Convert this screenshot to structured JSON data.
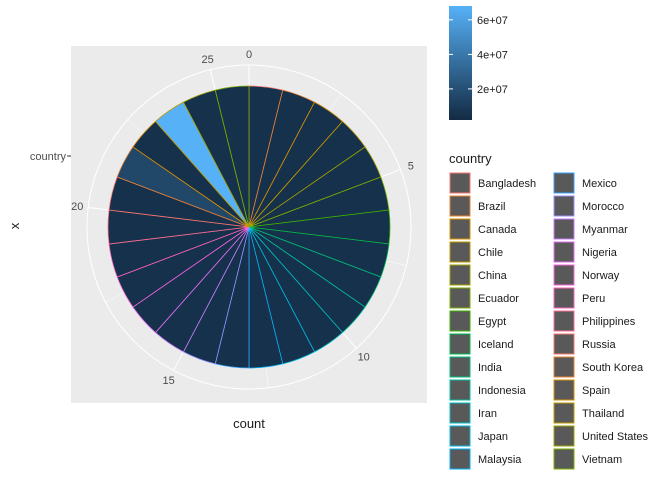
{
  "chart_data": {
    "type": "pie",
    "coord": "polar",
    "x_axis_title": "count",
    "y_axis_title": "x",
    "y_tick_label": "country",
    "theta_ticks": [
      "0",
      "5",
      "10",
      "15",
      "20",
      "25"
    ],
    "theta_tick_values": [
      0,
      5,
      10,
      15,
      20,
      25
    ],
    "total": 26,
    "categories": [
      "Bangladesh",
      "Brazil",
      "Canada",
      "Chile",
      "China",
      "Ecuador",
      "Egypt",
      "Iceland",
      "India",
      "Indonesia",
      "Iran",
      "Japan",
      "Malaysia",
      "Mexico",
      "Morocco",
      "Myanmar",
      "Nigeria",
      "Norway",
      "Peru",
      "Philippines",
      "Russia",
      "South Korea",
      "Spain",
      "Thailand",
      "United States",
      "Vietnam"
    ],
    "values": [
      1,
      1,
      1,
      1,
      1,
      1,
      1,
      1,
      1,
      1,
      1,
      1,
      1,
      1,
      1,
      1,
      1,
      1,
      1,
      1,
      1,
      1,
      1,
      1,
      1,
      1
    ],
    "fill_values": [
      5000000,
      5000000,
      5000000,
      5000000,
      5000000,
      5000000,
      5000000,
      5000000,
      5000000,
      5000000,
      5000000,
      5000000,
      5000000,
      5000000,
      5000000,
      5000000,
      5000000,
      5000000,
      5000000,
      5000000,
      5000000,
      16000000,
      5000000,
      68000000,
      5000000,
      5000000
    ],
    "outline_colors": [
      "#F8766D",
      "#EA8331",
      "#D89000",
      "#C09B00",
      "#A3A500",
      "#7CAE00",
      "#39B600",
      "#00BB4E",
      "#00BF7D",
      "#00C1A3",
      "#00BFC4",
      "#00BAE0",
      "#00B0F6",
      "#35A2FF",
      "#9590FF",
      "#C77CFF",
      "#E76BF3",
      "#FA62DB",
      "#FF62BC",
      "#FF6C91",
      "#F8766D",
      "#EA8331",
      "#D89000",
      "#C09B00",
      "#A3A500",
      "#7CAE00"
    ],
    "colorbar": {
      "title": "",
      "labels": [
        "2e+07",
        "4e+07",
        "6e+07"
      ],
      "label_values": [
        20000000,
        40000000,
        60000000
      ],
      "range": [
        2000000,
        68000000
      ],
      "low_color": "#132B43",
      "high_color": "#56B1F7"
    },
    "legend": {
      "title": "country",
      "column1": [
        "Bangladesh",
        "Brazil",
        "Canada",
        "Chile",
        "China",
        "Ecuador",
        "Egypt",
        "Iceland",
        "India",
        "Indonesia",
        "Iran",
        "Japan",
        "Malaysia"
      ],
      "column2": [
        "Mexico",
        "Morocco",
        "Myanmar",
        "Nigeria",
        "Norway",
        "Peru",
        "Philippines",
        "Russia",
        "South Korea",
        "Spain",
        "Thailand",
        "United States",
        "Vietnam"
      ],
      "key_fill": "#595959"
    },
    "panel_background": "#EBEBEB",
    "grid_color": "#FFFFFF"
  }
}
